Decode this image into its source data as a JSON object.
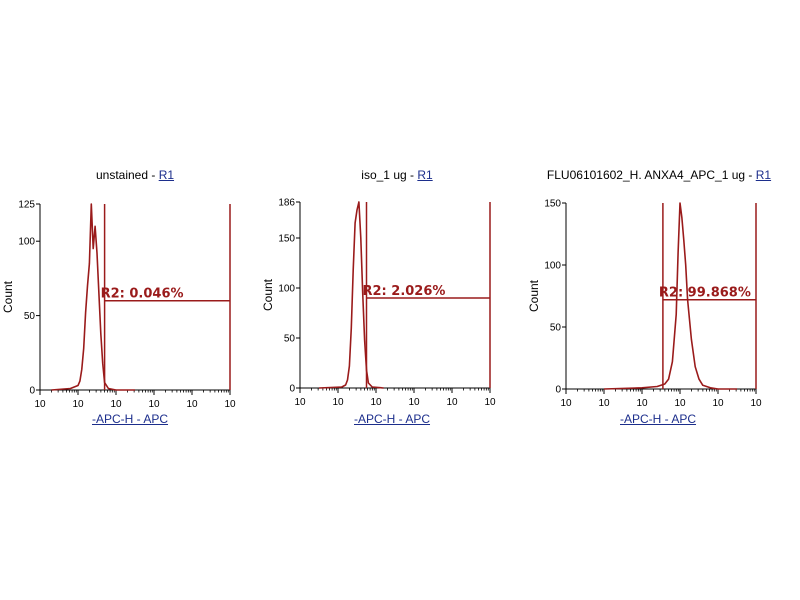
{
  "chart_data": [
    {
      "type": "histogram",
      "title": "unstained",
      "gate": "R1",
      "xlabel": "-APC-H - APC",
      "ylabel": "Count",
      "ylim": [
        0,
        125
      ],
      "yticks": [
        0,
        50,
        100,
        125
      ],
      "xticks": [
        "10",
        "10",
        "10",
        "10",
        "10",
        "10"
      ],
      "xscale": "log",
      "xlim_decades": [
        0,
        5
      ],
      "region": {
        "name": "R2",
        "label": "R2: 0.046%",
        "x_start": 1.7,
        "x_end": 5.0,
        "y": 60
      },
      "line_color": "#9a1b1b",
      "histogram": {
        "x": [
          0.3,
          0.8,
          1.0,
          1.05,
          1.1,
          1.15,
          1.2,
          1.25,
          1.3,
          1.35,
          1.4,
          1.45,
          1.5,
          1.55,
          1.6,
          1.65,
          1.7,
          1.8,
          2.0,
          2.5
        ],
        "y": [
          0,
          1,
          3,
          6,
          14,
          28,
          52,
          70,
          85,
          125,
          95,
          110,
          92,
          65,
          38,
          18,
          5,
          1,
          0,
          0
        ]
      }
    },
    {
      "type": "histogram",
      "title": "iso_1 ug",
      "gate": "R1",
      "xlabel": "-APC-H - APC",
      "ylabel": "Count",
      "ylim": [
        0,
        186
      ],
      "yticks": [
        0,
        50,
        100,
        150,
        186
      ],
      "xticks": [
        "10",
        "10",
        "10",
        "10",
        "10",
        "10"
      ],
      "xscale": "log",
      "xlim_decades": [
        0,
        5
      ],
      "region": {
        "name": "R2",
        "label": "R2: 2.026%",
        "x_start": 1.75,
        "x_end": 5.0,
        "y": 90
      },
      "line_color": "#9a1b1b",
      "histogram": {
        "x": [
          0.5,
          1.1,
          1.2,
          1.25,
          1.3,
          1.35,
          1.4,
          1.45,
          1.5,
          1.55,
          1.6,
          1.65,
          1.7,
          1.75,
          1.8,
          1.9,
          2.2
        ],
        "y": [
          0,
          1,
          3,
          8,
          22,
          60,
          118,
          165,
          178,
          186,
          150,
          95,
          48,
          18,
          5,
          1,
          0
        ]
      }
    },
    {
      "type": "histogram",
      "title": "FLU06101602_H. ANXA4_APC_1 ug",
      "gate": "R1",
      "xlabel": "-APC-H - APC",
      "ylabel": "Count",
      "ylim": [
        0,
        150
      ],
      "yticks": [
        0,
        50,
        100,
        150
      ],
      "xticks": [
        "10",
        "10",
        "10",
        "10",
        "10",
        "10"
      ],
      "xscale": "log",
      "xlim_decades": [
        0,
        5
      ],
      "region": {
        "name": "R2",
        "label": "R2: 99.868%",
        "x_start": 2.55,
        "x_end": 5.0,
        "y": 72
      },
      "line_color": "#9a1b1b",
      "histogram": {
        "x": [
          1.0,
          2.0,
          2.4,
          2.6,
          2.7,
          2.8,
          2.9,
          2.95,
          3.0,
          3.05,
          3.1,
          3.15,
          3.2,
          3.3,
          3.4,
          3.5,
          3.6,
          3.8,
          4.0,
          4.5
        ],
        "y": [
          0,
          1,
          2,
          4,
          8,
          22,
          60,
          110,
          150,
          138,
          120,
          100,
          72,
          40,
          18,
          8,
          3,
          1,
          0,
          0
        ]
      }
    }
  ]
}
